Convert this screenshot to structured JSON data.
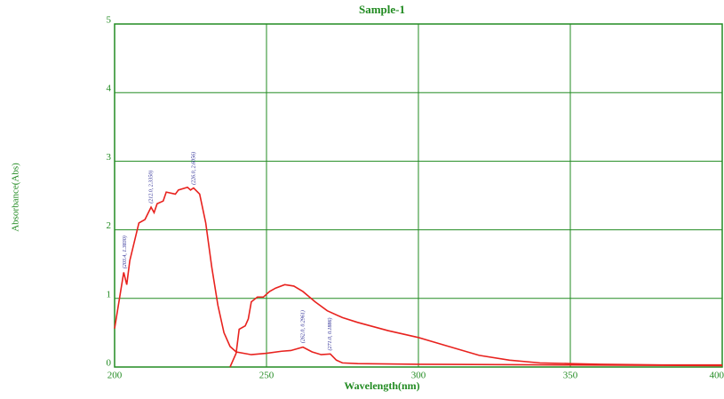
{
  "chart_data": {
    "type": "line",
    "title": "Sample-1",
    "xlabel": "Wavelength(nm)",
    "ylabel": "Absorbance(Abs)",
    "xlim": [
      200,
      400
    ],
    "xticks": [
      200,
      250,
      300,
      350,
      400
    ],
    "ylim": [
      0,
      5
    ],
    "yticks": [
      0,
      1,
      2,
      3,
      4,
      5
    ],
    "grid": true,
    "grid_color": "#228b22",
    "text_color": "#228b22",
    "series": [
      {
        "color": "#e8221e",
        "x": [
          200,
          203,
          204,
          205,
          208,
          210,
          212,
          213,
          214,
          216,
          217,
          220,
          221,
          224,
          225,
          226,
          228,
          230,
          232,
          234,
          236,
          238,
          240,
          245,
          250,
          255,
          258,
          262,
          265,
          268,
          271,
          273,
          275,
          280,
          300,
          350,
          400
        ],
        "values": [
          0.56,
          1.38,
          1.2,
          1.55,
          2.1,
          2.15,
          2.33,
          2.25,
          2.38,
          2.42,
          2.55,
          2.52,
          2.58,
          2.62,
          2.58,
          2.61,
          2.52,
          2.1,
          1.45,
          0.9,
          0.5,
          0.3,
          0.22,
          0.18,
          0.2,
          0.23,
          0.24,
          0.29,
          0.22,
          0.18,
          0.19,
          0.1,
          0.06,
          0.05,
          0.04,
          0.03,
          0.02
        ]
      },
      {
        "color": "#e8221e",
        "x": [
          238,
          240,
          241,
          243,
          244,
          245,
          247,
          249,
          251,
          253,
          256,
          259,
          262,
          266,
          270,
          275,
          280,
          290,
          300,
          310,
          320,
          330,
          340,
          350,
          360,
          380,
          400
        ],
        "values": [
          0,
          0.2,
          0.55,
          0.6,
          0.7,
          0.95,
          1.02,
          1.02,
          1.1,
          1.15,
          1.2,
          1.18,
          1.1,
          0.95,
          0.82,
          0.72,
          0.65,
          0.53,
          0.43,
          0.3,
          0.17,
          0.1,
          0.06,
          0.05,
          0.04,
          0.03,
          0.03
        ]
      }
    ],
    "annotations": [
      {
        "x": 203.4,
        "y": 1.383,
        "text": "(203.4, 1.3830)"
      },
      {
        "x": 212.0,
        "y": 2.335,
        "text": "(212.0, 2.3350)"
      },
      {
        "x": 226.0,
        "y": 2.6056,
        "text": "(226.0, 2.6056)"
      },
      {
        "x": 262.0,
        "y": 0.2961,
        "text": "(262.0, 0.2961)"
      },
      {
        "x": 271.0,
        "y": 0.1886,
        "text": "(271.0, 0.1886)"
      }
    ]
  }
}
